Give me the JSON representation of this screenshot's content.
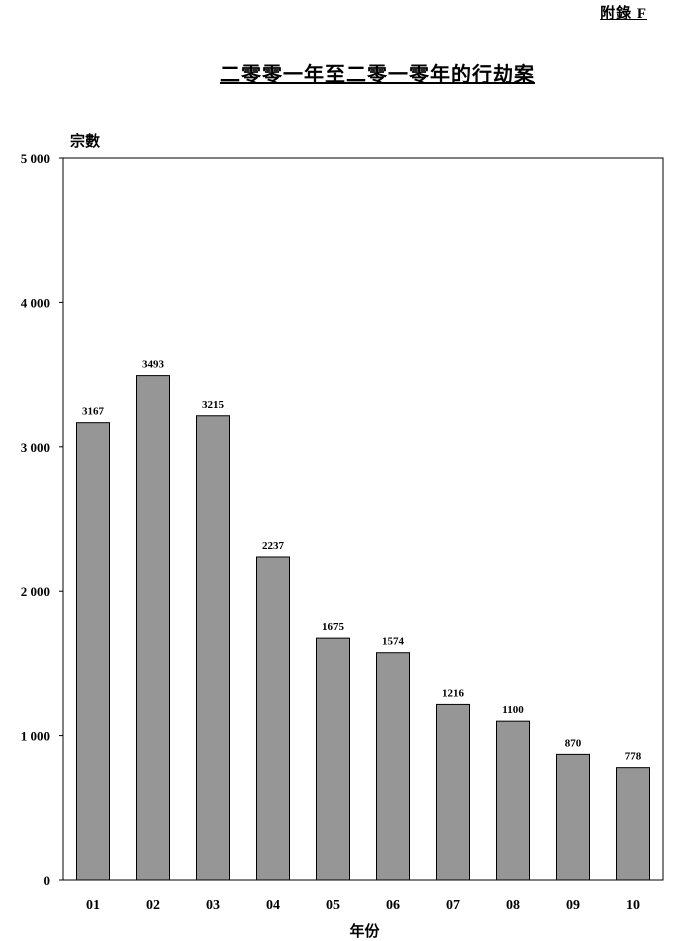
{
  "appendix_label": "附錄 F",
  "chart_data": {
    "type": "bar",
    "title": "二零零一年至二零一零年的行劫案",
    "xlabel": "年份",
    "ylabel": "宗數",
    "categories": [
      "01",
      "02",
      "03",
      "04",
      "05",
      "06",
      "07",
      "08",
      "09",
      "10"
    ],
    "values": [
      3167,
      3493,
      3215,
      2237,
      1675,
      1574,
      1216,
      1100,
      870,
      778
    ],
    "ylim": [
      0,
      5000
    ],
    "yticks": [
      0,
      1000,
      2000,
      3000,
      4000,
      5000
    ],
    "ytick_labels": [
      "0",
      "1 000",
      "2 000",
      "3 000",
      "4 000",
      "5 000"
    ],
    "grid": false,
    "bar_color": "#969696",
    "data_labels": true
  }
}
